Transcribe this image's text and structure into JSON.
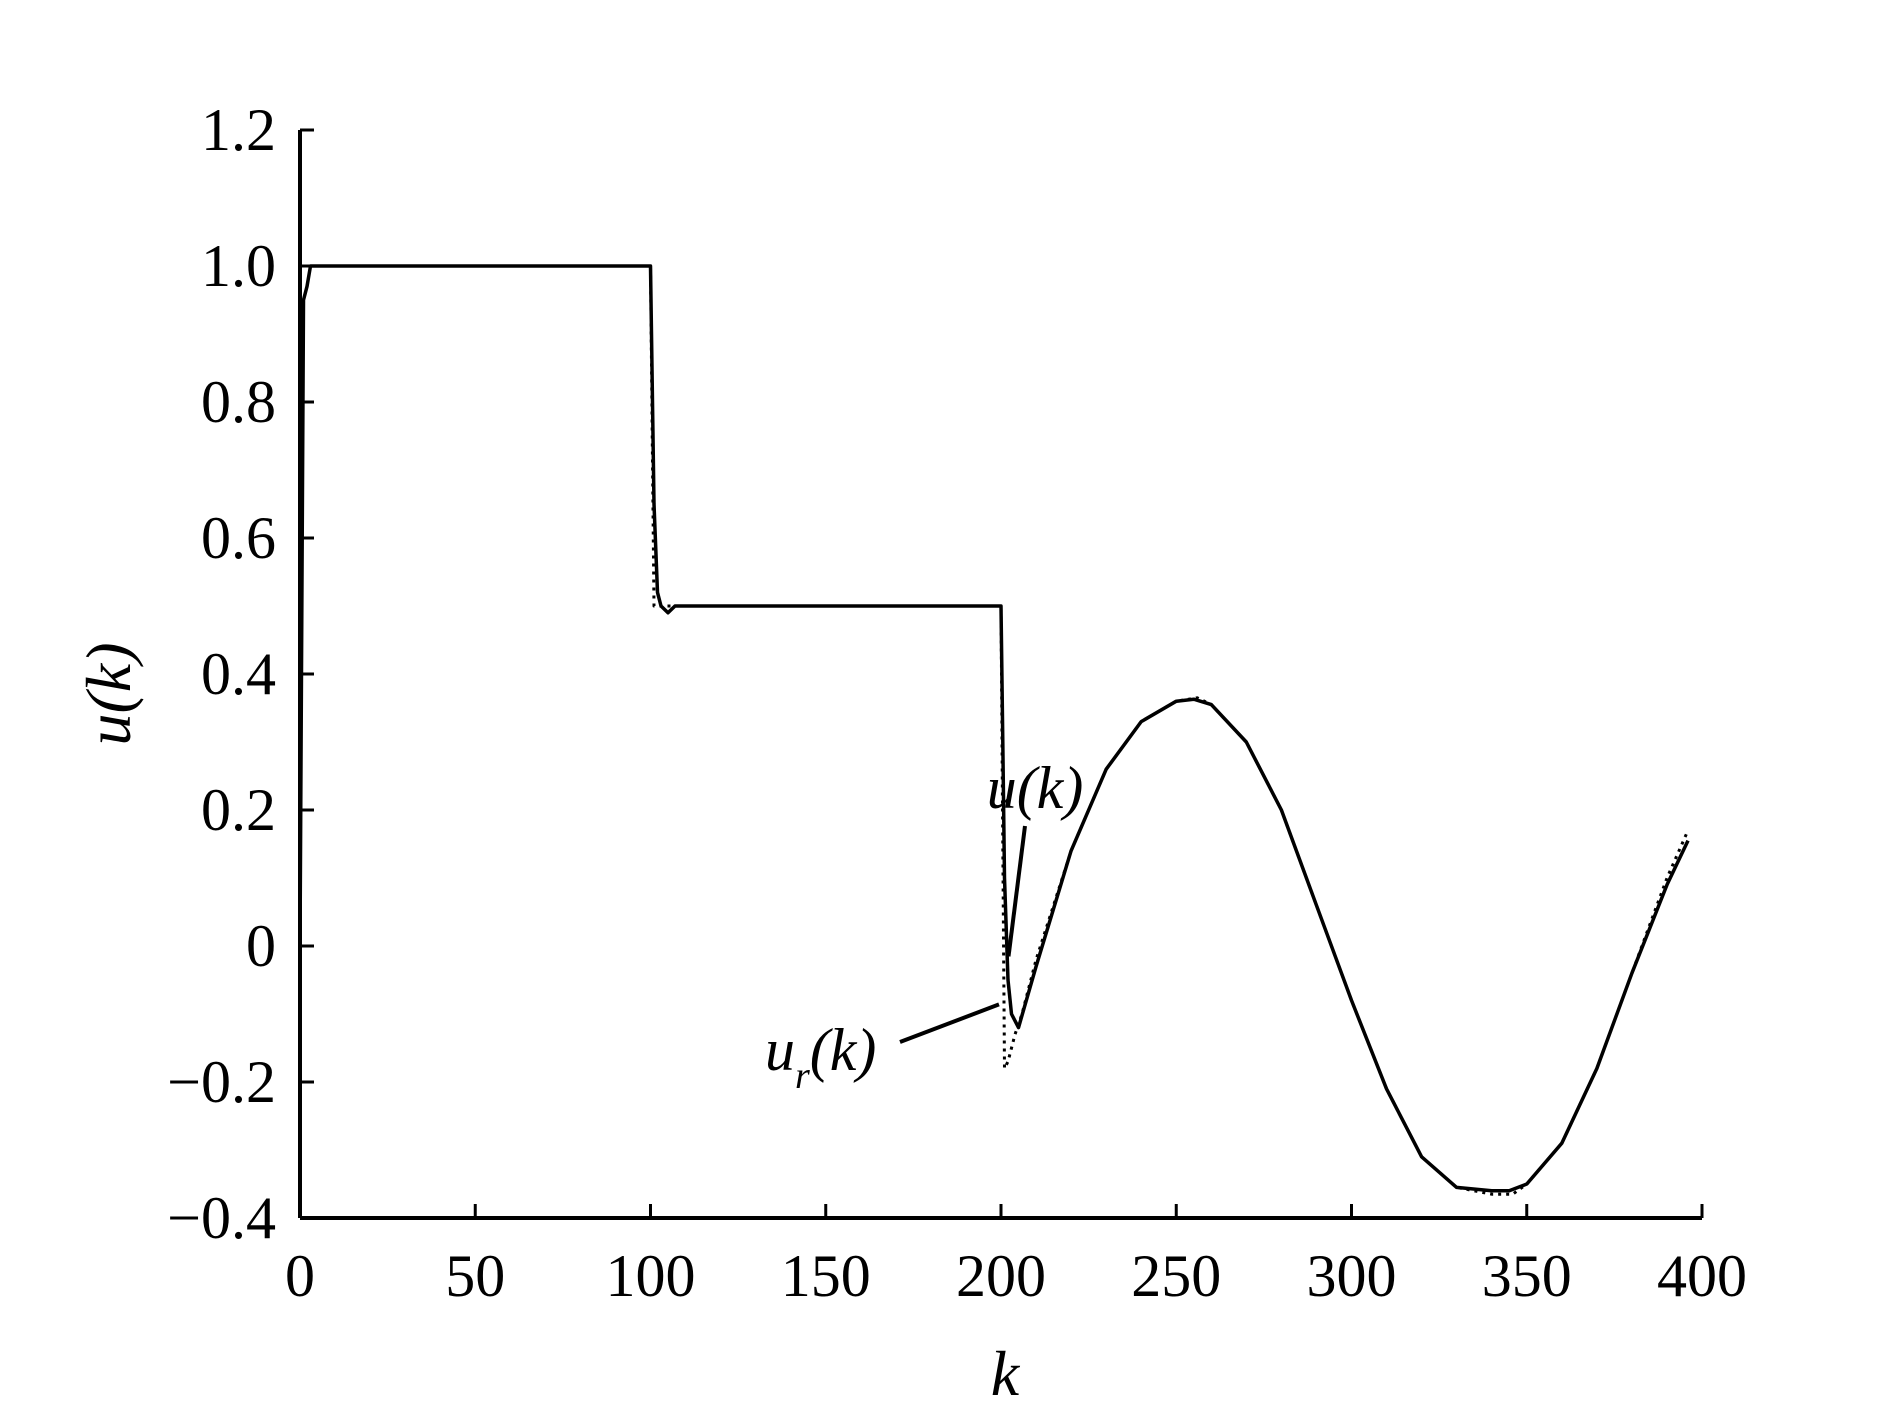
{
  "chart_data": {
    "type": "line",
    "xlabel": "k",
    "ylabel": "u(k)",
    "xlim": [
      0,
      400
    ],
    "ylim": [
      -0.4,
      1.2
    ],
    "xticks": [
      0,
      50,
      100,
      150,
      200,
      250,
      300,
      350,
      400
    ],
    "xtick_labels": [
      "0",
      "50",
      "100",
      "150",
      "200",
      "250",
      "300",
      "350",
      "400"
    ],
    "yticks": [
      -0.4,
      -0.2,
      0,
      0.2,
      0.4,
      0.6,
      0.8,
      1.0,
      1.2
    ],
    "ytick_labels": [
      "−0.4",
      "−0.2",
      "0",
      "0.2",
      "0.4",
      "0.6",
      "0.8",
      "1.0",
      "1.2"
    ],
    "grid": false,
    "legend": "none",
    "series": [
      {
        "name": "u(k)",
        "style": "solid",
        "color": "#000000",
        "x": [
          0,
          1,
          2,
          3,
          5,
          100,
          101,
          102,
          103,
          105,
          107,
          110,
          200,
          200.5,
          201,
          202,
          203,
          205,
          210,
          220,
          230,
          240,
          250,
          255,
          260,
          270,
          280,
          290,
          300,
          310,
          320,
          330,
          340,
          345,
          350,
          360,
          370,
          380,
          390,
          396
        ],
        "y": [
          0,
          0.95,
          0.97,
          1.0,
          1.0,
          1.0,
          0.65,
          0.52,
          0.5,
          0.49,
          0.5,
          0.5,
          0.5,
          0.3,
          0.1,
          -0.05,
          -0.1,
          -0.12,
          -0.03,
          0.14,
          0.26,
          0.33,
          0.36,
          0.363,
          0.355,
          0.3,
          0.2,
          0.06,
          -0.08,
          -0.21,
          -0.31,
          -0.355,
          -0.36,
          -0.36,
          -0.35,
          -0.29,
          -0.18,
          -0.04,
          0.09,
          0.155
        ]
      },
      {
        "name": "u_r(k)",
        "style": "dotted",
        "color": "#000000",
        "x": [
          0,
          1,
          5,
          100,
          101,
          102,
          104,
          106,
          110,
          200,
          201,
          202,
          204,
          206,
          210,
          220,
          230,
          240,
          250,
          256,
          260,
          270,
          280,
          290,
          300,
          310,
          320,
          330,
          340,
          346,
          350,
          360,
          370,
          380,
          390,
          396
        ],
        "y": [
          1.0,
          1.0,
          1.0,
          1.0,
          0.5,
          0.5,
          0.5,
          0.5,
          0.5,
          0.5,
          -0.18,
          -0.17,
          -0.13,
          -0.1,
          -0.02,
          0.14,
          0.26,
          0.33,
          0.36,
          0.365,
          0.355,
          0.3,
          0.2,
          0.06,
          -0.08,
          -0.21,
          -0.31,
          -0.355,
          -0.365,
          -0.365,
          -0.35,
          -0.29,
          -0.18,
          -0.04,
          0.1,
          0.17
        ]
      }
    ],
    "annotations": [
      {
        "id": "u",
        "text": "u(k)",
        "x": 203,
        "y": -0.03
      },
      {
        "id": "ur",
        "base": "u",
        "sub": "r",
        "suffix": "(k)",
        "x": 200,
        "y": -0.08
      }
    ]
  }
}
